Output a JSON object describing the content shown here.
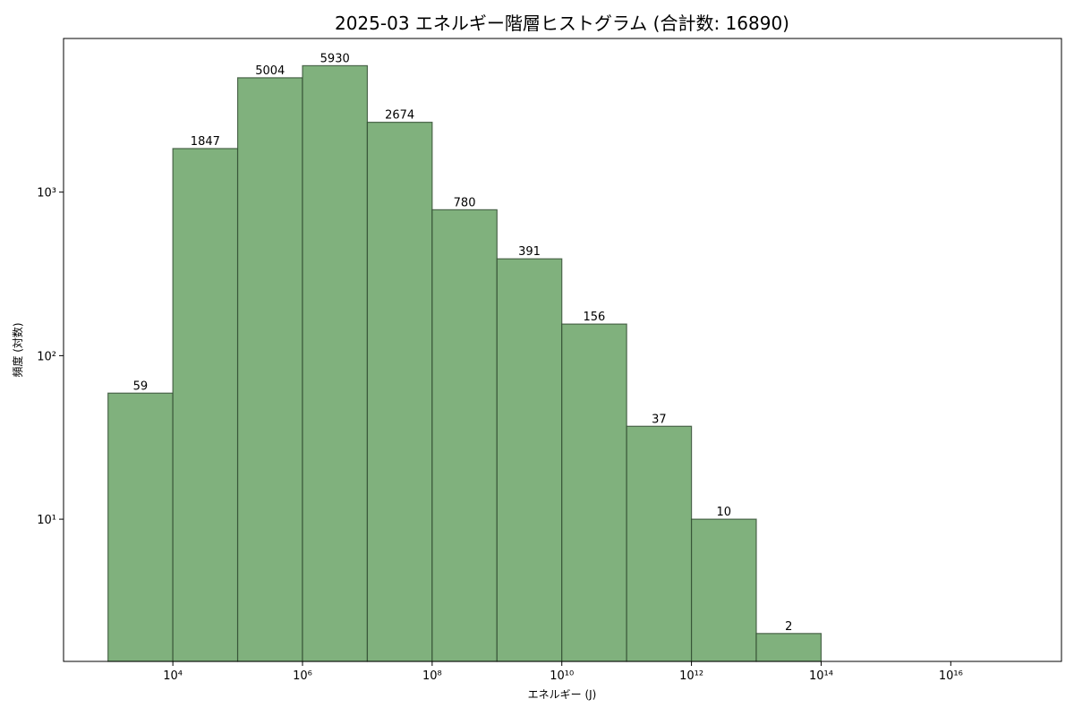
{
  "chart_data": {
    "type": "histogram",
    "title": "2025-03 エネルギー階層ヒストグラム (合計数: 16890)",
    "x_label": "エネルギー (J)",
    "y_label": "頻度 (対数)",
    "bins": [
      1000.0,
      10000.0,
      100000.0,
      1000000.0,
      10000000.0,
      100000000.0,
      1000000000.0,
      10000000000.0,
      100000000000.0,
      1000000000000.0,
      10000000000000.0,
      100000000000000.0
    ],
    "counts": [
      59,
      1847,
      5004,
      5930,
      2674,
      780,
      391,
      156,
      37,
      10,
      2
    ],
    "color": "#80b17d",
    "edge_color": "#2f4a2f",
    "xscale": "log",
    "yscale": "log",
    "xlim": [
      206,
      5.1e+17
    ],
    "ylim": [
      1.35,
      8700
    ],
    "xticks": [
      {
        "value": 10000.0,
        "label": "10⁴"
      },
      {
        "value": 1000000.0,
        "label": "10⁶"
      },
      {
        "value": 100000000.0,
        "label": "10⁸"
      },
      {
        "value": 10000000000.0,
        "label": "10¹⁰"
      },
      {
        "value": 1000000000000.0,
        "label": "10¹²"
      },
      {
        "value": 100000000000000.0,
        "label": "10¹⁴"
      },
      {
        "value": 1e+16,
        "label": "10¹⁶"
      }
    ],
    "yticks": [
      {
        "value": 10,
        "label": "10¹"
      },
      {
        "value": 100,
        "label": "10²"
      },
      {
        "value": 1000,
        "label": "10³"
      }
    ],
    "grid": false
  }
}
